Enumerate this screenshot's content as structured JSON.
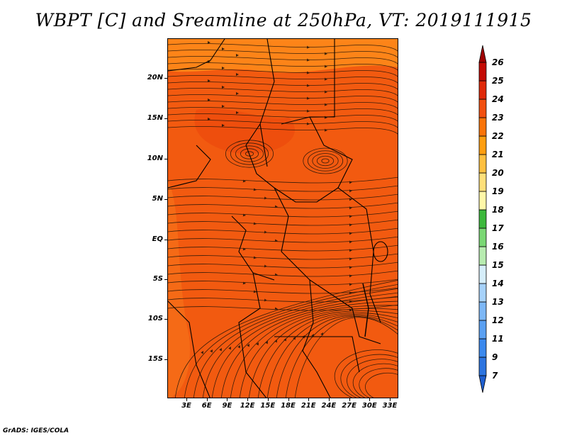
{
  "title": "WBPT [C] and Sreamline at 250hPa, VT: 2019111915",
  "credit": "GrADS: IGES/COLA",
  "lat_labels": [
    "20N",
    "15N",
    "10N",
    "5N",
    "EQ",
    "5S",
    "10S",
    "15S"
  ],
  "lon_labels": [
    "3E",
    "6E",
    "9E",
    "12E",
    "15E",
    "18E",
    "21E",
    "24E",
    "27E",
    "30E",
    "33E"
  ],
  "colorbar": {
    "labels": [
      "7",
      "9",
      "11",
      "12",
      "13",
      "14",
      "15",
      "16",
      "17",
      "18",
      "19",
      "20",
      "21",
      "22",
      "23",
      "24",
      "25",
      "26"
    ],
    "colors": [
      "#1f5fd0",
      "#2c74e0",
      "#3b89ee",
      "#5aa0f2",
      "#7db8f6",
      "#a6d2fa",
      "#d6eefa",
      "#b8ecb0",
      "#7ad874",
      "#3cb93c",
      "#fff7a8",
      "#ffe07a",
      "#ffc040",
      "#ff9e10",
      "#fb7408",
      "#f25010",
      "#e02808",
      "#c40a04",
      "#a00000"
    ]
  },
  "map": {
    "fill_colors": {
      "main": "#f25a10",
      "warm": "#ff8c1a",
      "hot": "#e8400a",
      "streamline": "#1a1208",
      "border": "#000000"
    }
  }
}
